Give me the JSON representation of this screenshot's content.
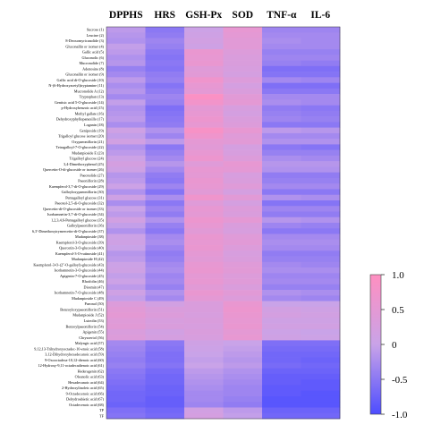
{
  "chart_data": {
    "type": "heatmap",
    "columns": [
      "DPPHS",
      "HRS",
      "GSH-Px",
      "SOD",
      "TNF-α",
      "IL-6"
    ],
    "rows": [
      "Sucrose (1)",
      "Leucine (2)",
      "8-Deoxomyricanolide (3)",
      "Gluconallin or isomer (4)",
      "Gallic acid (5)",
      "Gluconolic (6)",
      "Mucronolide (7)",
      "Adenosine (8)",
      "Gluconallin or isomer (9)",
      "Gallic acid di-O-glucoside (10)",
      "N-(6-Hydroxyacetyl)tryptamine (11)",
      "Mucronolide A (12)",
      "Tryptophan (13)",
      "Gentisic acid 5-O-glucoside (14)",
      "p-Hydroxybenzoic acid (15)",
      "Methyl gallate (16)",
      "Dehydroxyphyllopanaxillo (17)",
      "Loganin (18)",
      "Geniposide (19)",
      "Trigalloyl glucose isomer (20)",
      "Oxypaeoniflorin (21)",
      "Tetragalloyl-7-O-glucoside (22)",
      "Mudanpioside E (23)",
      "Trigalloyl glucose (24)",
      "3,4-Dimethoxyphenol (25)",
      "Quercetin-O-di-glucoside or isomer (26)",
      "Paeonolide (27)",
      "Paeoniflorin (28)",
      "Kaempferol-3,7-di-O-glucoside (29)",
      "Galloyloxypaeoniflorin (30)",
      "Pentagalloyl glucose (31)",
      "Paeonol-2,5-di-O-glucoside (32)",
      "Quercetin-di-O-glucoside or isomer (33)",
      "Isorhamnetin-3,7-di-O-glucoside (34)",
      "1,2,3,4,6-Pentagalloyl glucose (35)",
      "Galloylpaeoniflorin (36)",
      "6,3'-Dimethoxytrymercetin-di-O-glucoside (37)",
      "Mudanpioside (38)",
      "Kaempferol-3-O-glucoside (39)",
      "Quercetin-3-O-glucoside (40)",
      "Kaempferol-3-O-rutinoside (41)",
      "Mudanpioside H (42)",
      "Kaempferol-3-O-(2''-O-galloyl)-glucoside (43)",
      "Isorhamnetin-3-O-glucoside (44)",
      "Apigenin-7-O-glucoside (45)",
      "Rhoifolin (46)",
      "Diosmin (47)",
      "Isorhamnetin-7-O-glucoside (48)",
      "Mudanpioside C (49)",
      "Paeonol (50)",
      "Benzoyloxypaeoniflorin (51)",
      "Mudanpioside J (52)",
      "Luteolin (53)",
      "Benzoylpaeoniflorin (54)",
      "Apigenin (55)",
      "Chrysoeriol (56)",
      "Malyngic acid (57)",
      "9,12,13-Trihydroxyoctadec-10-enoic acid (58)",
      "3,12-Dihydroxyhexadecanoic acid (59)",
      "9-Oxooctadeca-10,12-dienoic acid (60)",
      "12-Hydroxy-9,11-octadecadienoic acid (61)",
      "Hederagenin (62)",
      "Oleanolic acid (63)",
      "Hexadecanoic acid (64)",
      "2-Hydroxylinoleic acid (65)",
      "9-Octadecenoic acid (66)",
      "Dehydroabietic acid (67)",
      "Octadecenoic acid (68)",
      "TP",
      "TF"
    ],
    "values": [
      [
        -0.1,
        -0.5,
        0.05,
        0.55,
        -0.35,
        -0.35
      ],
      [
        -0.15,
        -0.45,
        0.1,
        0.5,
        -0.3,
        -0.3
      ],
      [
        -0.2,
        -0.35,
        0.15,
        0.45,
        -0.25,
        -0.3
      ],
      [
        -0.05,
        -0.4,
        0.1,
        0.45,
        -0.3,
        -0.3
      ],
      [
        -0.1,
        -0.5,
        0.6,
        0.35,
        -0.4,
        -0.4
      ],
      [
        -0.2,
        -0.55,
        0.55,
        0.3,
        -0.35,
        -0.35
      ],
      [
        -0.15,
        -0.5,
        0.6,
        0.3,
        -0.4,
        -0.45
      ],
      [
        -0.4,
        -0.55,
        0.4,
        0.25,
        -0.6,
        -0.6
      ],
      [
        -0.3,
        -0.45,
        0.45,
        0.2,
        -0.55,
        -0.55
      ],
      [
        -0.1,
        -0.4,
        0.7,
        0.35,
        -0.3,
        -0.35
      ],
      [
        -0.25,
        -0.55,
        0.55,
        0.2,
        -0.6,
        -0.6
      ],
      [
        -0.15,
        -0.45,
        0.5,
        0.3,
        -0.5,
        -0.5
      ],
      [
        -0.3,
        -0.35,
        0.9,
        0.45,
        -0.3,
        -0.3
      ],
      [
        -0.05,
        -0.4,
        0.75,
        0.5,
        -0.25,
        -0.3
      ],
      [
        -0.2,
        -0.6,
        0.5,
        0.25,
        -0.45,
        -0.5
      ],
      [
        -0.15,
        -0.55,
        0.55,
        0.2,
        -0.4,
        -0.45
      ],
      [
        -0.1,
        -0.5,
        0.65,
        0.3,
        -0.35,
        -0.4
      ],
      [
        -0.25,
        -0.45,
        0.55,
        0.35,
        -0.5,
        -0.5
      ],
      [
        0.1,
        -0.2,
        0.85,
        0.55,
        -0.1,
        -0.15
      ],
      [
        -0.05,
        -0.35,
        0.7,
        0.4,
        -0.3,
        -0.3
      ],
      [
        0.15,
        -0.1,
        0.5,
        0.45,
        -0.2,
        -0.2
      ],
      [
        -0.2,
        -0.5,
        0.45,
        0.2,
        -0.5,
        -0.55
      ],
      [
        -0.1,
        -0.4,
        0.55,
        0.25,
        -0.4,
        -0.4
      ],
      [
        0.05,
        -0.3,
        0.65,
        0.35,
        -0.25,
        -0.3
      ],
      [
        0.2,
        -0.15,
        0.4,
        0.55,
        -0.15,
        -0.15
      ],
      [
        0.1,
        -0.3,
        0.55,
        0.5,
        -0.2,
        -0.2
      ],
      [
        -0.15,
        -0.45,
        0.5,
        0.25,
        -0.45,
        -0.45
      ],
      [
        -0.1,
        -0.5,
        0.6,
        0.3,
        -0.4,
        -0.4
      ],
      [
        0.05,
        -0.35,
        0.55,
        0.4,
        -0.3,
        -0.3
      ],
      [
        -0.2,
        -0.55,
        0.45,
        0.2,
        -0.5,
        -0.5
      ],
      [
        0.1,
        -0.25,
        0.7,
        0.45,
        -0.2,
        -0.25
      ],
      [
        -0.25,
        -0.5,
        0.4,
        0.2,
        -0.55,
        -0.55
      ],
      [
        0.0,
        -0.35,
        0.55,
        0.35,
        -0.35,
        -0.35
      ],
      [
        -0.1,
        -0.45,
        0.5,
        0.3,
        -0.45,
        -0.45
      ],
      [
        0.15,
        -0.2,
        0.65,
        0.5,
        -0.15,
        -0.2
      ],
      [
        -0.05,
        -0.4,
        0.55,
        0.3,
        -0.35,
        -0.4
      ],
      [
        -0.2,
        -0.5,
        0.45,
        0.25,
        -0.5,
        -0.5
      ],
      [
        0.05,
        -0.3,
        0.6,
        0.4,
        -0.3,
        -0.3
      ],
      [
        0.1,
        -0.25,
        0.55,
        0.45,
        -0.25,
        -0.25
      ],
      [
        0.0,
        -0.35,
        0.6,
        0.35,
        -0.3,
        -0.3
      ],
      [
        -0.15,
        -0.45,
        0.5,
        0.25,
        -0.45,
        -0.45
      ],
      [
        -0.1,
        -0.4,
        0.45,
        0.3,
        -0.4,
        -0.4
      ],
      [
        0.05,
        -0.3,
        0.55,
        0.4,
        -0.3,
        -0.35
      ],
      [
        0.1,
        -0.25,
        0.6,
        0.45,
        -0.25,
        -0.25
      ],
      [
        -0.05,
        -0.35,
        0.5,
        0.35,
        -0.35,
        -0.35
      ],
      [
        0.05,
        -0.3,
        0.55,
        0.4,
        -0.3,
        -0.3
      ],
      [
        -0.1,
        -0.4,
        0.45,
        0.3,
        -0.4,
        -0.4
      ],
      [
        0.1,
        -0.2,
        0.6,
        0.45,
        -0.2,
        -0.25
      ],
      [
        -0.05,
        -0.3,
        0.5,
        0.35,
        -0.3,
        -0.35
      ],
      [
        0.35,
        0.15,
        0.3,
        0.6,
        0.0,
        0.0
      ],
      [
        0.45,
        0.3,
        0.3,
        0.65,
        0.15,
        0.1
      ],
      [
        0.5,
        0.35,
        0.25,
        0.6,
        0.2,
        0.15
      ],
      [
        0.4,
        0.25,
        0.3,
        0.55,
        0.1,
        0.1
      ],
      [
        0.45,
        0.3,
        0.25,
        0.6,
        0.15,
        0.15
      ],
      [
        0.3,
        0.15,
        0.3,
        0.5,
        0.05,
        0.0
      ],
      [
        0.35,
        0.2,
        0.25,
        0.55,
        0.1,
        0.05
      ],
      [
        -0.3,
        -0.5,
        0.1,
        0.0,
        -0.6,
        -0.6
      ],
      [
        -0.35,
        -0.55,
        0.05,
        -0.05,
        -0.65,
        -0.65
      ],
      [
        -0.4,
        -0.6,
        0.0,
        -0.1,
        -0.7,
        -0.7
      ],
      [
        -0.45,
        -0.6,
        -0.05,
        -0.15,
        -0.7,
        -0.75
      ],
      [
        -0.4,
        -0.55,
        0.0,
        -0.1,
        -0.65,
        -0.7
      ],
      [
        -0.5,
        -0.65,
        -0.1,
        -0.2,
        -0.75,
        -0.75
      ],
      [
        -0.55,
        -0.7,
        -0.15,
        -0.25,
        -0.8,
        -0.8
      ],
      [
        -0.6,
        -0.7,
        -0.2,
        -0.3,
        -0.8,
        -0.85
      ],
      [
        -0.65,
        -0.75,
        -0.25,
        -0.35,
        -0.85,
        -0.85
      ],
      [
        -0.7,
        -0.75,
        -0.3,
        -0.35,
        -0.85,
        -0.9
      ],
      [
        -0.7,
        -0.8,
        -0.3,
        -0.4,
        -0.9,
        -0.9
      ],
      [
        -0.75,
        -0.8,
        -0.35,
        -0.45,
        -0.9,
        -0.9
      ],
      [
        -0.6,
        -0.7,
        0.15,
        -0.1,
        -0.75,
        -0.75
      ],
      [
        -0.55,
        -0.65,
        0.2,
        -0.05,
        -0.7,
        -0.7
      ]
    ],
    "colorbar": {
      "min": -1.0,
      "max": 1.0,
      "ticks": [
        "1.0",
        "0.5",
        "0",
        "-0.5",
        "-1.0"
      ],
      "low_color": "#4d4dff",
      "mid_color": "#c9a3e8",
      "high_color": "#ff8fc0"
    }
  }
}
